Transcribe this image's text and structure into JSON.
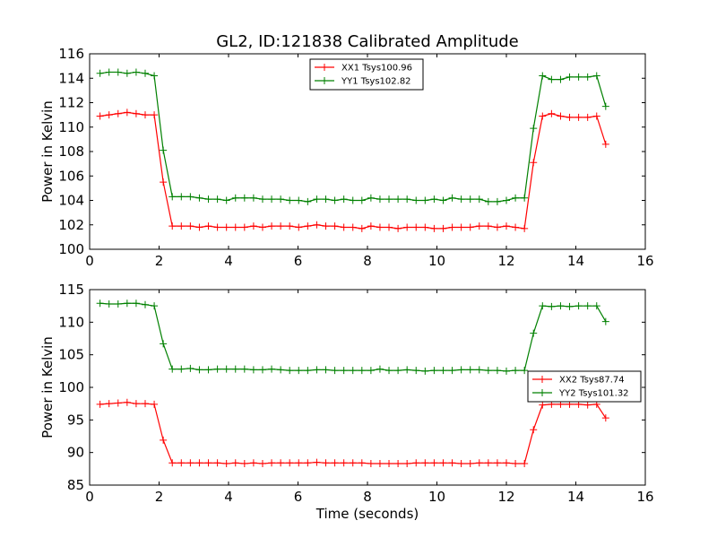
{
  "figure": {
    "title": "GL2, ID:121838 Calibrated Amplitude"
  },
  "chart_data": [
    {
      "type": "line",
      "title": "GL2, ID:121838 Calibrated Amplitude",
      "xlabel": "",
      "ylabel": "Power in Kelvin",
      "xlim": [
        0,
        16
      ],
      "ylim": [
        100,
        116
      ],
      "xticks": [
        0,
        2,
        4,
        6,
        8,
        10,
        12,
        14,
        16
      ],
      "yticks": [
        100,
        102,
        104,
        106,
        108,
        110,
        112,
        114,
        116
      ],
      "grid": false,
      "legend_position": "top-center",
      "x": [
        0.3,
        0.56,
        0.82,
        1.08,
        1.34,
        1.6,
        1.86,
        2.12,
        2.38,
        2.64,
        2.9,
        3.16,
        3.42,
        3.68,
        3.94,
        4.2,
        4.46,
        4.72,
        4.98,
        5.24,
        5.5,
        5.76,
        6.02,
        6.28,
        6.54,
        6.8,
        7.06,
        7.32,
        7.58,
        7.84,
        8.1,
        8.36,
        8.62,
        8.88,
        9.14,
        9.4,
        9.66,
        9.92,
        10.18,
        10.44,
        10.7,
        10.96,
        11.22,
        11.48,
        11.74,
        12.0,
        12.26,
        12.52,
        12.78,
        13.04,
        13.3,
        13.56,
        13.82,
        14.08,
        14.34,
        14.6,
        14.86
      ],
      "series": [
        {
          "name": "XX1 Tsys100.96",
          "color": "#ff0000",
          "values": [
            110.9,
            111.0,
            111.1,
            111.2,
            111.1,
            111.0,
            111.0,
            105.5,
            101.9,
            101.9,
            101.9,
            101.8,
            101.9,
            101.8,
            101.8,
            101.8,
            101.8,
            101.9,
            101.8,
            101.9,
            101.9,
            101.9,
            101.8,
            101.9,
            102.0,
            101.9,
            101.9,
            101.8,
            101.8,
            101.7,
            101.9,
            101.8,
            101.8,
            101.7,
            101.8,
            101.8,
            101.8,
            101.7,
            101.7,
            101.8,
            101.8,
            101.8,
            101.9,
            101.9,
            101.8,
            101.9,
            101.8,
            101.7,
            107.1,
            110.9,
            111.1,
            110.9,
            110.8,
            110.8,
            110.8,
            110.9,
            108.6
          ]
        },
        {
          "name": "YY1 Tsys102.82",
          "color": "#008000",
          "values": [
            114.4,
            114.5,
            114.5,
            114.4,
            114.5,
            114.4,
            114.2,
            108.1,
            104.3,
            104.3,
            104.3,
            104.2,
            104.1,
            104.1,
            104.0,
            104.2,
            104.2,
            104.2,
            104.1,
            104.1,
            104.1,
            104.0,
            104.0,
            103.9,
            104.1,
            104.1,
            104.0,
            104.1,
            104.0,
            104.0,
            104.2,
            104.1,
            104.1,
            104.1,
            104.1,
            104.0,
            104.0,
            104.1,
            104.0,
            104.2,
            104.1,
            104.1,
            104.1,
            103.9,
            103.9,
            104.0,
            104.2,
            104.2,
            109.9,
            114.2,
            113.9,
            113.9,
            114.1,
            114.1,
            114.1,
            114.2,
            111.7
          ]
        }
      ]
    },
    {
      "type": "line",
      "title": "",
      "xlabel": "Time (seconds)",
      "ylabel": "Power in Kelvin",
      "xlim": [
        0,
        16
      ],
      "ylim": [
        85,
        115
      ],
      "xticks": [
        0,
        2,
        4,
        6,
        8,
        10,
        12,
        14,
        16
      ],
      "yticks": [
        85,
        90,
        95,
        100,
        105,
        110,
        115
      ],
      "grid": false,
      "legend_position": "right",
      "x": [
        0.3,
        0.56,
        0.82,
        1.08,
        1.34,
        1.6,
        1.86,
        2.12,
        2.38,
        2.64,
        2.9,
        3.16,
        3.42,
        3.68,
        3.94,
        4.2,
        4.46,
        4.72,
        4.98,
        5.24,
        5.5,
        5.76,
        6.02,
        6.28,
        6.54,
        6.8,
        7.06,
        7.32,
        7.58,
        7.84,
        8.1,
        8.36,
        8.62,
        8.88,
        9.14,
        9.4,
        9.66,
        9.92,
        10.18,
        10.44,
        10.7,
        10.96,
        11.22,
        11.48,
        11.74,
        12.0,
        12.26,
        12.52,
        12.78,
        13.04,
        13.3,
        13.56,
        13.82,
        14.08,
        14.34,
        14.6,
        14.86
      ],
      "series": [
        {
          "name": "XX2 Tsys87.74",
          "color": "#ff0000",
          "values": [
            97.4,
            97.5,
            97.6,
            97.7,
            97.5,
            97.5,
            97.4,
            91.9,
            88.4,
            88.4,
            88.4,
            88.4,
            88.4,
            88.4,
            88.3,
            88.4,
            88.3,
            88.4,
            88.3,
            88.4,
            88.4,
            88.4,
            88.4,
            88.4,
            88.5,
            88.4,
            88.4,
            88.4,
            88.4,
            88.4,
            88.3,
            88.3,
            88.3,
            88.3,
            88.3,
            88.4,
            88.4,
            88.4,
            88.4,
            88.4,
            88.3,
            88.3,
            88.4,
            88.4,
            88.4,
            88.4,
            88.3,
            88.3,
            93.5,
            97.3,
            97.4,
            97.4,
            97.4,
            97.4,
            97.3,
            97.4,
            95.3
          ]
        },
        {
          "name": "YY2 Tsys101.32",
          "color": "#008000",
          "values": [
            112.9,
            112.8,
            112.8,
            112.9,
            112.9,
            112.7,
            112.5,
            106.7,
            102.8,
            102.8,
            102.9,
            102.7,
            102.7,
            102.8,
            102.8,
            102.8,
            102.8,
            102.7,
            102.7,
            102.8,
            102.7,
            102.6,
            102.6,
            102.6,
            102.7,
            102.7,
            102.6,
            102.6,
            102.6,
            102.6,
            102.6,
            102.8,
            102.6,
            102.6,
            102.7,
            102.6,
            102.5,
            102.6,
            102.6,
            102.6,
            102.7,
            102.7,
            102.7,
            102.6,
            102.6,
            102.5,
            102.6,
            102.6,
            108.3,
            112.5,
            112.4,
            112.5,
            112.4,
            112.5,
            112.5,
            112.5,
            110.1
          ]
        }
      ]
    }
  ]
}
